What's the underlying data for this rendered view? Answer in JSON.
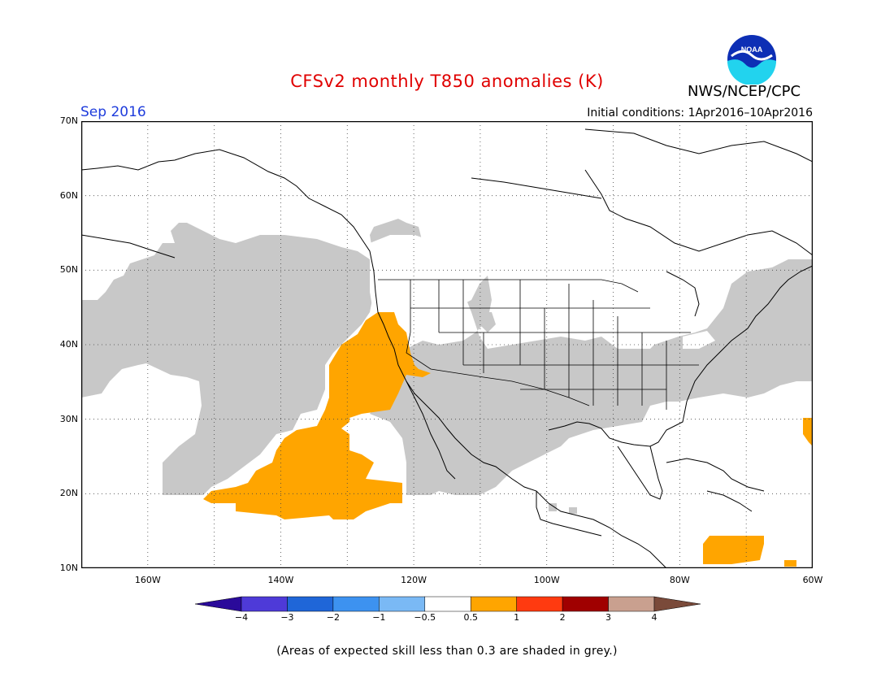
{
  "title": "CFSv2 monthly T850 anomalies (K)",
  "period": "Sep 2016",
  "initial_conditions": "Initial conditions: 1Apr2016–10Apr2016",
  "organization": "NWS/NCEP/CPC",
  "logo_text": "NOAA",
  "map": {
    "lat_labels": [
      "70N",
      "60N",
      "50N",
      "40N",
      "30N",
      "20N",
      "10N"
    ],
    "lon_labels": [
      "160W",
      "140W",
      "120W",
      "100W",
      "80W",
      "60W"
    ],
    "lat_range": [
      10,
      70
    ],
    "lon_range": [
      -170,
      -60
    ],
    "grid": "dotted every 10 degrees",
    "shading": [
      {
        "label": "low skill",
        "color": "#c8c8c8"
      },
      {
        "label": "0.5 to 1 K",
        "color": "#ffa500"
      },
      {
        "label": "-0.5 to 0.5 K",
        "color": "#ffffff"
      }
    ]
  },
  "colorbar": {
    "labels": [
      "−4",
      "−3",
      "−2",
      "−1",
      "−0.5",
      "0.5",
      "1",
      "2",
      "3",
      "4"
    ],
    "colors": [
      "#2a0a9a",
      "#4e3ad8",
      "#1f66d8",
      "#3d92f0",
      "#7ab9f5",
      "#ffffff",
      "#ffa500",
      "#ff3a10",
      "#a00000",
      "#c9a08f",
      "#7a4a3a"
    ]
  },
  "footnote": "(Areas of expected skill less than 0.3 are shaded in grey.)"
}
